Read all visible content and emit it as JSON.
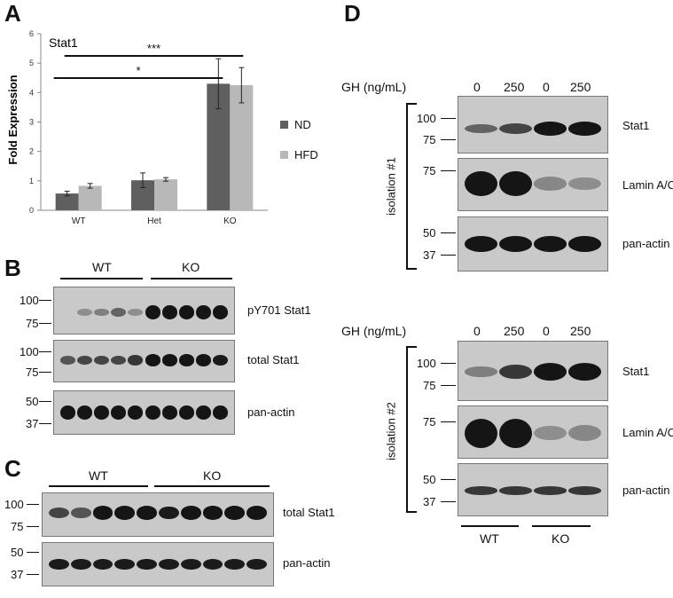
{
  "panels": {
    "A": "A",
    "B": "B",
    "C": "C",
    "D": "D"
  },
  "chart_data": {
    "type": "bar",
    "title": "Stat1",
    "ylabel": "Fold Expression",
    "xlabel": "",
    "categories": [
      "WT",
      "Het",
      "KO"
    ],
    "ylim": [
      0,
      6
    ],
    "yticks": [
      "0",
      "1",
      "2",
      "3",
      "4",
      "5",
      "6"
    ],
    "series": [
      {
        "name": "ND",
        "values": [
          0.57,
          1.02,
          4.3
        ],
        "errors": [
          0.08,
          0.25,
          0.85
        ],
        "color": "#5f5f5f"
      },
      {
        "name": "HFD",
        "values": [
          0.83,
          1.05,
          4.25
        ],
        "errors": [
          0.08,
          0.06,
          0.6
        ],
        "color": "#b8b8b8"
      }
    ],
    "significance": [
      {
        "from": "WT",
        "to": "KO",
        "label": "*"
      },
      {
        "from": "WT",
        "to": "KO",
        "label": "***"
      }
    ],
    "legend": "right"
  },
  "blots": {
    "B": {
      "groups": [
        "WT",
        "KO"
      ],
      "rows": [
        {
          "label": "pY701 Stat1",
          "markers": [
            "100",
            "75"
          ]
        },
        {
          "label": "total Stat1",
          "markers": [
            "100",
            "75"
          ]
        },
        {
          "label": "pan-actin",
          "markers": [
            "50",
            "37"
          ]
        }
      ]
    },
    "C": {
      "groups": [
        "WT",
        "KO"
      ],
      "rows": [
        {
          "label": "total Stat1",
          "markers": [
            "100",
            "75"
          ]
        },
        {
          "label": "pan-actin",
          "markers": [
            "50",
            "37"
          ]
        }
      ]
    },
    "D": {
      "gh_label": "GH (ng/mL)",
      "gh_doses": [
        "0",
        "250",
        "0",
        "250"
      ],
      "isolations": [
        {
          "label": "isolation #1",
          "rows": [
            {
              "label": "Stat1",
              "markers": [
                "100",
                "75"
              ]
            },
            {
              "label": "Lamin A/C",
              "markers": [
                "75"
              ]
            },
            {
              "label": "pan-actin",
              "markers": [
                "50",
                "37"
              ]
            }
          ]
        },
        {
          "label": "isolation #2",
          "rows": [
            {
              "label": "Stat1",
              "markers": [
                "100",
                "75"
              ]
            },
            {
              "label": "Lamin A/C",
              "markers": [
                "75"
              ]
            },
            {
              "label": "pan-actin",
              "markers": [
                "50",
                "37"
              ]
            }
          ]
        }
      ],
      "groups": [
        "WT",
        "KO"
      ]
    }
  }
}
